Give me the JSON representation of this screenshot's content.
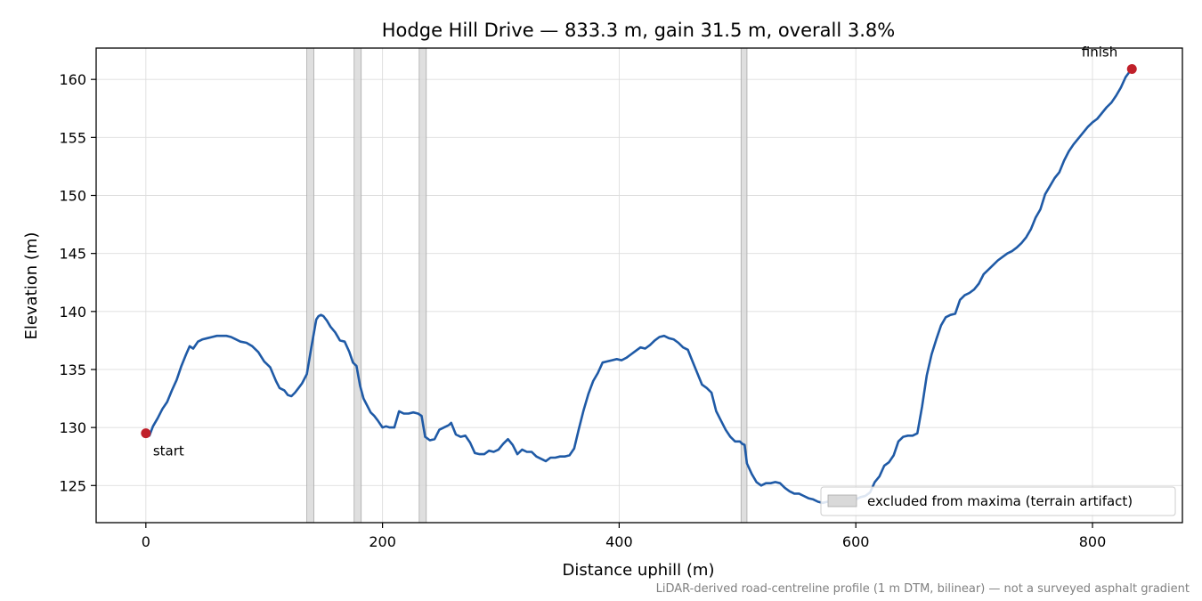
{
  "chart_data": {
    "type": "line",
    "title": "Hodge Hill Drive — 833.3 m, gain 31.5 m, overall 3.8%",
    "xlabel": "Distance uphill (m)",
    "ylabel": "Elevation (m)",
    "xlim": [
      -42,
      876
    ],
    "ylim": [
      121.8,
      162.7
    ],
    "xticks": [
      0,
      200,
      400,
      600,
      800
    ],
    "yticks": [
      125,
      130,
      135,
      140,
      145,
      150,
      155,
      160
    ],
    "grid": true,
    "line_color": "#1f5aa6",
    "marker_color": "#c0202a",
    "band_color": "#d9d9d9",
    "series": [
      {
        "x": [
          0,
          3,
          6,
          10,
          14,
          18,
          22,
          26,
          30,
          34,
          37,
          40,
          44,
          48,
          52,
          56,
          60,
          64,
          68,
          72,
          76,
          80,
          85,
          90,
          95,
          100,
          105,
          110,
          113,
          117,
          120,
          123,
          126,
          129,
          132,
          136,
          140,
          144,
          146,
          148,
          150,
          153,
          156,
          160,
          164,
          168,
          172,
          175,
          178,
          181,
          184,
          187,
          190,
          193,
          196,
          200,
          203,
          206,
          210,
          214,
          218,
          222,
          226,
          230,
          233,
          236,
          240,
          244,
          248,
          252,
          256,
          258,
          262,
          266,
          270,
          274,
          278,
          282,
          286,
          290,
          294,
          298,
          302,
          306,
          310,
          314,
          318,
          322,
          326,
          330,
          334,
          338,
          342,
          346,
          350,
          354,
          358,
          362,
          366,
          370,
          374,
          378,
          382,
          386,
          390,
          394,
          398,
          402,
          406,
          410,
          414,
          418,
          422,
          426,
          430,
          434,
          438,
          442,
          446,
          450,
          454,
          458,
          462,
          466,
          470,
          474,
          478,
          482,
          486,
          490,
          494,
          498,
          502,
          504,
          506,
          508,
          512,
          516,
          520,
          524,
          528,
          532,
          536,
          540,
          544,
          548,
          552,
          556,
          560,
          564,
          568,
          572,
          576,
          580,
          584,
          588,
          592,
          596,
          600,
          604,
          608,
          612,
          616,
          620,
          624,
          628,
          632,
          636,
          640,
          644,
          648,
          652,
          656,
          660,
          664,
          668,
          672,
          676,
          680,
          684,
          688,
          692,
          696,
          700,
          704,
          708,
          712,
          716,
          720,
          724,
          728,
          732,
          736,
          740,
          744,
          748,
          752,
          756,
          760,
          764,
          768,
          772,
          776,
          780,
          784,
          788,
          792,
          796,
          800,
          804,
          808,
          812,
          816,
          820,
          824,
          828,
          833
        ],
        "y": [
          129.4,
          129.3,
          130.1,
          130.8,
          131.6,
          132.2,
          133.2,
          134.1,
          135.3,
          136.3,
          137.0,
          136.8,
          137.4,
          137.6,
          137.7,
          137.8,
          137.9,
          137.9,
          137.9,
          137.8,
          137.6,
          137.4,
          137.3,
          137.0,
          136.5,
          135.7,
          135.2,
          134.0,
          133.4,
          133.2,
          132.8,
          132.7,
          133.0,
          133.4,
          133.8,
          134.6,
          137.0,
          139.3,
          139.6,
          139.7,
          139.6,
          139.2,
          138.7,
          138.2,
          137.5,
          137.4,
          136.5,
          135.6,
          135.3,
          133.6,
          132.5,
          131.9,
          131.3,
          131.0,
          130.6,
          130.0,
          130.1,
          130.0,
          130.0,
          131.4,
          131.2,
          131.2,
          131.3,
          131.2,
          131.0,
          129.2,
          128.9,
          129.0,
          129.8,
          130.0,
          130.2,
          130.4,
          129.4,
          129.2,
          129.3,
          128.7,
          127.8,
          127.7,
          127.7,
          128.0,
          127.9,
          128.1,
          128.6,
          129.0,
          128.5,
          127.7,
          128.1,
          127.9,
          127.9,
          127.5,
          127.3,
          127.1,
          127.4,
          127.4,
          127.5,
          127.5,
          127.6,
          128.2,
          129.9,
          131.5,
          132.9,
          134.0,
          134.7,
          135.6,
          135.7,
          135.8,
          135.9,
          135.8,
          136.0,
          136.3,
          136.6,
          136.9,
          136.8,
          137.1,
          137.5,
          137.8,
          137.9,
          137.7,
          137.6,
          137.3,
          136.9,
          136.7,
          135.7,
          134.7,
          133.7,
          133.4,
          133.0,
          131.4,
          130.6,
          129.8,
          129.2,
          128.8,
          128.8,
          128.6,
          128.5,
          126.9,
          126.0,
          125.3,
          125.0,
          125.2,
          125.2,
          125.3,
          125.2,
          124.8,
          124.5,
          124.3,
          124.3,
          124.1,
          123.9,
          123.8,
          123.6,
          123.5,
          123.6,
          123.4,
          123.5,
          123.5,
          123.6,
          123.8,
          123.8,
          124.0,
          124.1,
          124.4,
          125.3,
          125.8,
          126.7,
          127.0,
          127.6,
          128.8,
          129.2,
          129.3,
          129.3,
          129.5,
          131.8,
          134.5,
          136.3,
          137.6,
          138.8,
          139.5,
          139.7,
          139.8,
          141.0,
          141.4,
          141.6,
          141.9,
          142.4,
          143.2,
          143.6,
          144.0,
          144.4,
          144.7,
          145.0,
          145.2,
          145.5,
          145.9,
          146.4,
          147.1,
          148.1,
          148.8,
          150.1,
          150.8,
          151.5,
          152.0,
          153.0,
          153.8,
          154.4,
          154.9,
          155.4,
          155.9,
          156.3,
          156.6,
          157.1,
          157.6,
          158.0,
          158.6,
          159.3,
          160.2,
          160.9
        ]
      }
    ],
    "markers": [
      {
        "x": 0,
        "y": 129.5,
        "label": "start"
      },
      {
        "x": 833.3,
        "y": 160.9,
        "label": "finish"
      }
    ],
    "excluded_bands": [
      [
        136,
        142
      ],
      [
        176,
        182
      ],
      [
        231,
        237
      ],
      [
        503,
        508
      ]
    ],
    "legend": {
      "label": "excluded from maxima (terrain artifact)",
      "placement": "lower-right"
    },
    "footnote": "LiDAR-derived road-centreline profile (1 m DTM, bilinear) — not a surveyed asphalt gradient"
  }
}
